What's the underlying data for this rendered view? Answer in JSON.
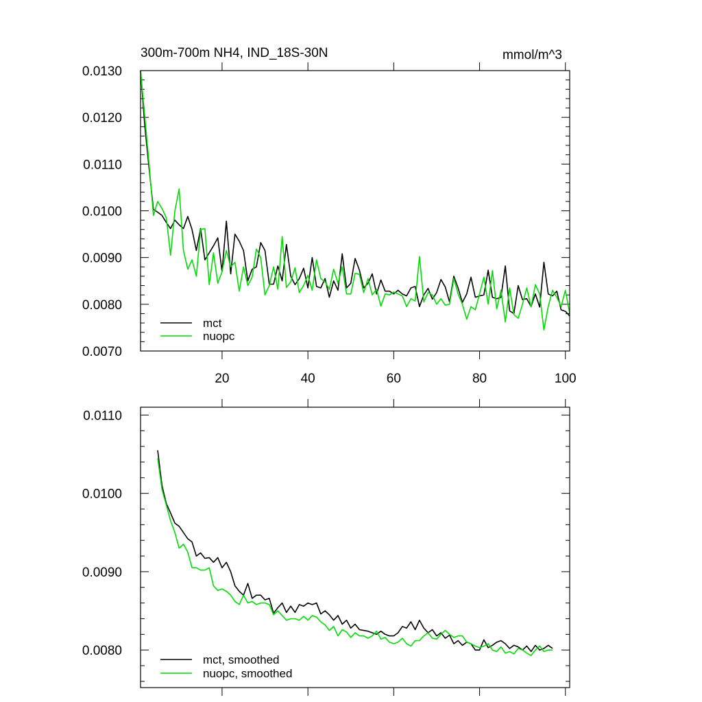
{
  "chart_data": [
    {
      "type": "line",
      "title": "300m-700m NH4, IND_18S-30N",
      "units": "mmol/m^3",
      "xlim": [
        1,
        101
      ],
      "ylim": [
        0.007,
        0.013
      ],
      "xticks": [
        20,
        40,
        60,
        80,
        100
      ],
      "xtick_labels": [
        "20",
        "40",
        "60",
        "80",
        "100"
      ],
      "yticks": [
        0.007,
        0.008,
        0.009,
        0.01,
        0.011,
        0.012,
        0.013
      ],
      "ytick_labels": [
        "0.0070",
        "0.0080",
        "0.0090",
        "0.0100",
        "0.0110",
        "0.0120",
        "0.0130"
      ],
      "legend": "bottom-left",
      "series": [
        {
          "name": "mct",
          "color": "#000000",
          "values": [
            0.013,
            0.0118,
            0.0109,
            0.01003,
            0.00997,
            0.0099,
            0.00975,
            0.00962,
            0.0098,
            0.0097,
            0.00962,
            0.00988,
            0.0096,
            0.00915,
            0.00962,
            0.00895,
            0.0091,
            0.00925,
            0.00942,
            0.0087,
            0.00978,
            0.00865,
            0.0095,
            0.00935,
            0.00915,
            0.0085,
            0.00875,
            0.0088,
            0.00932,
            0.00915,
            0.00843,
            0.00843,
            0.00882,
            0.0085,
            0.00928,
            0.0086,
            0.00842,
            0.00855,
            0.00877,
            0.00835,
            0.009,
            0.00838,
            0.00835,
            0.00855,
            0.00815,
            0.0085,
            0.0083,
            0.00908,
            0.00835,
            0.00845,
            0.00898,
            0.00873,
            0.00835,
            0.00845,
            0.00865,
            0.00822,
            0.00852,
            0.00828,
            0.00828,
            0.00822,
            0.0083,
            0.00822,
            0.00818,
            0.00835,
            0.00838,
            0.00795,
            0.0082,
            0.00834,
            0.00811,
            0.00825,
            0.00853,
            0.00837,
            0.00805,
            0.0086,
            0.00835,
            0.00804,
            0.00822,
            0.00858,
            0.00815,
            0.00818,
            0.0082,
            0.00873,
            0.00815,
            0.00812,
            0.00815,
            0.00882,
            0.00786,
            0.0078,
            0.0084,
            0.0081,
            0.00812,
            0.00795,
            0.00822,
            0.00794,
            0.0089,
            0.00822,
            0.00818,
            0.00828,
            0.00788,
            0.00785,
            0.00775
          ]
        },
        {
          "name": "nuopc",
          "color": "#00dd00",
          "values": [
            0.0131,
            0.012,
            0.011,
            0.0099,
            0.0102,
            0.01005,
            0.00985,
            0.00905,
            0.01,
            0.01047,
            0.00915,
            0.00875,
            0.00895,
            0.0086,
            0.0096,
            0.00962,
            0.00842,
            0.0091,
            0.00845,
            0.0087,
            0.00915,
            0.0088,
            0.0089,
            0.00828,
            0.0088,
            0.0084,
            0.00858,
            0.00918,
            0.009,
            0.0082,
            0.0084,
            0.0088,
            0.00832,
            0.00945,
            0.00836,
            0.00848,
            0.00878,
            0.00825,
            0.0084,
            0.00862,
            0.0083,
            0.00895,
            0.00855,
            0.00848,
            0.00832,
            0.00875,
            0.00845,
            0.0088,
            0.00822,
            0.00822,
            0.00866,
            0.00864,
            0.00825,
            0.00855,
            0.0082,
            0.00832,
            0.00796,
            0.00822,
            0.0082,
            0.00826,
            0.00822,
            0.00818,
            0.00795,
            0.00812,
            0.00807,
            0.00902,
            0.00805,
            0.00825,
            0.0082,
            0.008,
            0.00812,
            0.00798,
            0.008,
            0.00855,
            0.00822,
            0.008,
            0.00768,
            0.00795,
            0.00788,
            0.00822,
            0.00858,
            0.008,
            0.00872,
            0.0079,
            0.0083,
            0.00762,
            0.00835,
            0.00778,
            0.0077,
            0.008,
            0.00835,
            0.00794,
            0.00842,
            0.00822,
            0.00745,
            0.00795,
            0.0083,
            0.00815,
            0.00795,
            0.0083,
            0.0078
          ]
        }
      ]
    },
    {
      "type": "line",
      "title": "",
      "units": "",
      "xlim": [
        1,
        101
      ],
      "ylim": [
        0.00752,
        0.0111
      ],
      "xticks": [
        20,
        40,
        60,
        80,
        100
      ],
      "xtick_labels": [],
      "yticks": [
        0.008,
        0.009,
        0.01,
        0.011
      ],
      "ytick_labels": [
        "0.0080",
        "0.0090",
        "0.0100",
        "0.0110"
      ],
      "legend": "bottom-left",
      "series": [
        {
          "name": "mct, smoothed",
          "color": "#000000",
          "x": [
            5,
            6,
            7,
            8,
            9,
            10,
            11,
            12,
            13,
            14,
            15,
            16,
            17,
            18,
            19,
            20,
            21,
            22,
            23,
            24,
            25,
            26,
            27,
            28,
            29,
            30,
            31,
            32,
            33,
            34,
            35,
            36,
            37,
            38,
            39,
            40,
            41,
            42,
            43,
            44,
            45,
            46,
            47,
            48,
            49,
            50,
            51,
            52,
            53,
            54,
            55,
            56,
            57,
            58,
            59,
            60,
            61,
            62,
            63,
            64,
            65,
            66,
            67,
            68,
            69,
            70,
            71,
            72,
            73,
            74,
            75,
            76,
            77,
            78,
            79,
            80,
            81,
            82,
            83,
            84,
            85,
            86,
            87,
            88,
            89,
            90,
            91,
            92,
            93,
            94,
            95,
            96,
            97
          ],
          "values": [
            0.01055,
            0.0101,
            0.00987,
            0.00975,
            0.00962,
            0.00958,
            0.0095,
            0.00942,
            0.00938,
            0.0092,
            0.00924,
            0.00917,
            0.00918,
            0.00912,
            0.00918,
            0.00905,
            0.00912,
            0.009,
            0.00882,
            0.00875,
            0.0087,
            0.00885,
            0.00866,
            0.0087,
            0.0087,
            0.00864,
            0.00866,
            0.00847,
            0.00854,
            0.0086,
            0.00848,
            0.00856,
            0.00848,
            0.00858,
            0.00856,
            0.0086,
            0.00858,
            0.0086,
            0.00846,
            0.0085,
            0.00845,
            0.00838,
            0.00844,
            0.00833,
            0.00838,
            0.00828,
            0.00833,
            0.00826,
            0.00825,
            0.00824,
            0.00822,
            0.0082,
            0.00824,
            0.0082,
            0.00818,
            0.00818,
            0.00822,
            0.0083,
            0.00828,
            0.00836,
            0.00826,
            0.00838,
            0.00828,
            0.00822,
            0.00826,
            0.00818,
            0.00822,
            0.00815,
            0.00819,
            0.00808,
            0.00812,
            0.00806,
            0.0081,
            0.00808,
            0.008,
            0.008,
            0.00813,
            0.00803,
            0.00806,
            0.0081,
            0.00812,
            0.00808,
            0.00802,
            0.00806,
            0.00804,
            0.008,
            0.00805,
            0.00798,
            0.00806,
            0.008,
            0.00802,
            0.00806,
            0.00802
          ]
        },
        {
          "name": "nuopc, smoothed",
          "color": "#00dd00",
          "x": [
            5,
            6,
            7,
            8,
            9,
            10,
            11,
            12,
            13,
            14,
            15,
            16,
            17,
            18,
            19,
            20,
            21,
            22,
            23,
            24,
            25,
            26,
            27,
            28,
            29,
            30,
            31,
            32,
            33,
            34,
            35,
            36,
            37,
            38,
            39,
            40,
            41,
            42,
            43,
            44,
            45,
            46,
            47,
            48,
            49,
            50,
            51,
            52,
            53,
            54,
            55,
            56,
            57,
            58,
            59,
            60,
            61,
            62,
            63,
            64,
            65,
            66,
            67,
            68,
            69,
            70,
            71,
            72,
            73,
            74,
            75,
            76,
            77,
            78,
            79,
            80,
            81,
            82,
            83,
            84,
            85,
            86,
            87,
            88,
            89,
            90,
            91,
            92,
            93,
            94,
            95,
            96,
            97
          ],
          "values": [
            0.01045,
            0.01005,
            0.00985,
            0.00965,
            0.0095,
            0.0093,
            0.00935,
            0.00925,
            0.00905,
            0.00905,
            0.00902,
            0.00902,
            0.00905,
            0.00882,
            0.00876,
            0.00878,
            0.00875,
            0.0087,
            0.00862,
            0.00858,
            0.0087,
            0.0086,
            0.00862,
            0.00858,
            0.0086,
            0.0086,
            0.00858,
            0.00845,
            0.0085,
            0.00844,
            0.00838,
            0.0084,
            0.0084,
            0.00838,
            0.00843,
            0.00838,
            0.00844,
            0.00842,
            0.00836,
            0.00832,
            0.00825,
            0.0083,
            0.00818,
            0.00826,
            0.00823,
            0.00816,
            0.00822,
            0.00818,
            0.00818,
            0.00815,
            0.00818,
            0.00824,
            0.00814,
            0.00816,
            0.0081,
            0.00808,
            0.0081,
            0.00815,
            0.00808,
            0.00805,
            0.00812,
            0.00812,
            0.00818,
            0.00822,
            0.00815,
            0.00814,
            0.0082,
            0.00825,
            0.0082,
            0.00816,
            0.00818,
            0.00818,
            0.0081,
            0.00808,
            0.00805,
            0.00803,
            0.00805,
            0.00808,
            0.008,
            0.00798,
            0.00804,
            0.00796,
            0.00798,
            0.00795,
            0.00802,
            0.008,
            0.00796,
            0.00793,
            0.008,
            0.00805,
            0.00798,
            0.008,
            0.008
          ]
        }
      ]
    }
  ]
}
